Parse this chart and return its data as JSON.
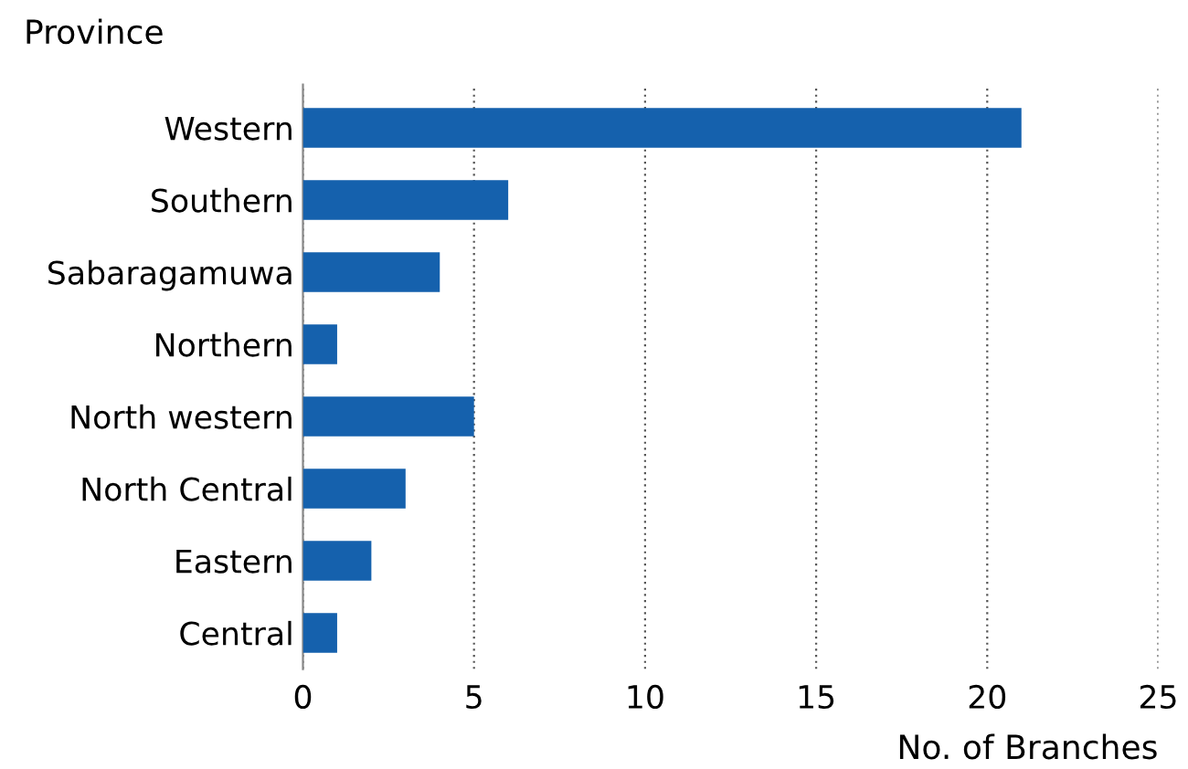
{
  "chart_data": {
    "type": "bar",
    "orientation": "horizontal",
    "ylabel": "Province",
    "xlabel": "No. of Branches",
    "categories": [
      "Western",
      "Southern",
      "Sabaragamuwa",
      "Northern",
      "North western",
      "North Central",
      "Eastern",
      "Central"
    ],
    "values": [
      21,
      6,
      4,
      1,
      5,
      3,
      2,
      1
    ],
    "color": "#1561ad",
    "xlim": [
      0,
      25
    ],
    "xticks": [
      0,
      5,
      10,
      15,
      20,
      25
    ],
    "grid": "x"
  }
}
